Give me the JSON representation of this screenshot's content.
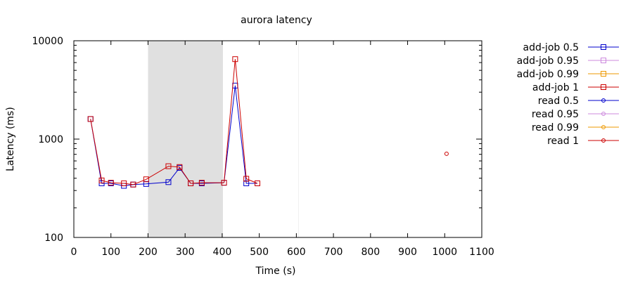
{
  "chart_data": {
    "type": "line",
    "title": "aurora latency",
    "xlabel": "Time (s)",
    "ylabel": "Latency (ms)",
    "xlim": [
      0,
      1100
    ],
    "ylim": [
      100,
      10000
    ],
    "yscale": "log",
    "xticks": [
      0,
      100,
      200,
      300,
      400,
      500,
      600,
      700,
      800,
      900,
      1000,
      1100
    ],
    "yticks": [
      100,
      1000,
      10000
    ],
    "grid": false,
    "legend_position": "right",
    "shaded_regions": [
      {
        "x_start": 200,
        "x_end": 402,
        "color": "#e0e0e0"
      }
    ],
    "vertical_lines": [
      {
        "x": 606,
        "color": "#f0f0f0"
      }
    ],
    "series": [
      {
        "name": "add-job 0.5",
        "color": "#0000cc",
        "marker": "square",
        "points": [
          [
            45,
            1600
          ],
          [
            75,
            355
          ],
          [
            100,
            355
          ],
          [
            135,
            335
          ],
          [
            160,
            345
          ],
          [
            195,
            350
          ],
          [
            255,
            365
          ],
          [
            285,
            510
          ],
          [
            315,
            355
          ],
          [
            345,
            355
          ],
          [
            405,
            360
          ],
          [
            435,
            3500
          ],
          [
            465,
            355
          ],
          [
            495,
            355
          ]
        ]
      },
      {
        "name": "add-job 0.95",
        "color": "#cc88dd",
        "marker": "square",
        "points": []
      },
      {
        "name": "add-job 0.99",
        "color": "#ee9900",
        "marker": "square",
        "points": []
      },
      {
        "name": "add-job 1",
        "color": "#cc0000",
        "marker": "square",
        "points": [
          [
            45,
            1600
          ],
          [
            75,
            380
          ],
          [
            100,
            360
          ],
          [
            135,
            355
          ],
          [
            160,
            345
          ],
          [
            195,
            390
          ],
          [
            255,
            530
          ],
          [
            285,
            520
          ],
          [
            315,
            355
          ],
          [
            345,
            360
          ],
          [
            405,
            360
          ],
          [
            435,
            6500
          ],
          [
            465,
            395
          ],
          [
            495,
            355
          ]
        ]
      },
      {
        "name": "read 0.5",
        "color": "#0000cc",
        "marker": "circle",
        "points": []
      },
      {
        "name": "read 0.95",
        "color": "#cc88dd",
        "marker": "circle",
        "points": []
      },
      {
        "name": "read 0.99",
        "color": "#ee9900",
        "marker": "circle",
        "points": []
      },
      {
        "name": "read 1",
        "color": "#cc0000",
        "marker": "circle",
        "points": [
          [
            1005,
            710
          ]
        ]
      }
    ]
  }
}
